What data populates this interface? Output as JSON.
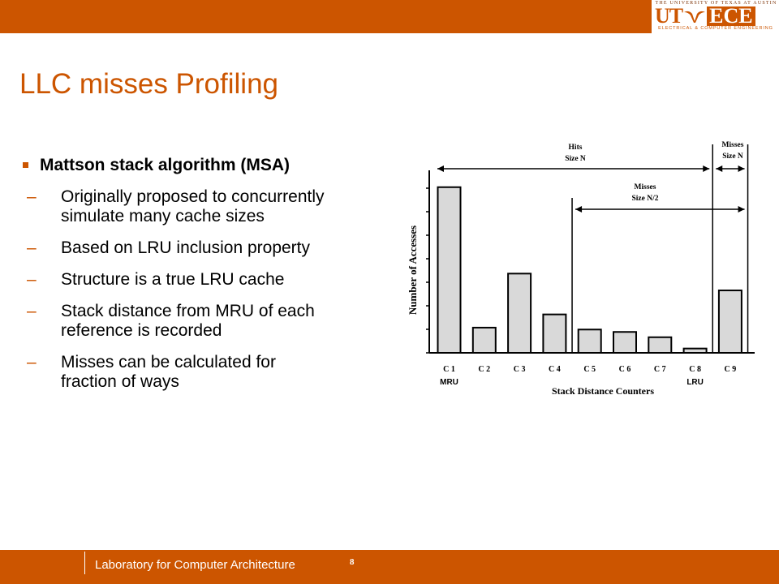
{
  "colors": {
    "accent": "#cc5500",
    "bar_fill": "#d9d9d9",
    "text": "#000000"
  },
  "logo": {
    "tagline": "THE UNIVERSITY OF TEXAS AT AUSTIN",
    "ut": "UT",
    "ece": "ECE",
    "subtitle": "ELECTRICAL & COMPUTER ENGINEERING"
  },
  "slide": {
    "title": "LLC misses  Profiling",
    "bullet": "Mattson stack algorithm (MSA)",
    "subbullets": [
      {
        "line1": "Originally proposed to concurrently",
        "line2": "simulate many cache sizes"
      },
      {
        "line1": "Based on LRU inclusion property",
        "line2": ""
      },
      {
        "line1": "Structure is a true LRU cache",
        "line2": ""
      },
      {
        "line1": "Stack distance from MRU of each",
        "line2": "reference is recorded"
      },
      {
        "line1": "Misses can be calculated for",
        "line2": "fraction of ways"
      }
    ],
    "dash": "–"
  },
  "chart_data": {
    "type": "bar",
    "categories": [
      "C 1",
      "C 2",
      "C 3",
      "C 4",
      "C 5",
      "C 6",
      "C 7",
      "C 8",
      "C 9"
    ],
    "values": [
      6.9,
      1.05,
      3.3,
      1.6,
      0.97,
      0.87,
      0.65,
      0.18,
      2.6
    ],
    "ylim": [
      0,
      7.5
    ],
    "ylabel": "Number of Accesses",
    "xlabel": "Stack Distance Counters",
    "category_sublabels": {
      "C 1": "MRU",
      "C 8": "LRU"
    },
    "annotations": [
      {
        "line1": "Hits",
        "line2": "Size N",
        "from": "C 1",
        "to": "C 8"
      },
      {
        "line1": "Misses",
        "line2": "Size N/2",
        "from": "C 5",
        "to": "C 9"
      },
      {
        "line1": "Misses",
        "line2": "Size N",
        "from": "C 9",
        "to": "C 9"
      }
    ]
  },
  "footer": {
    "page_number": "8",
    "lab": "Laboratory for Computer Architecture"
  }
}
